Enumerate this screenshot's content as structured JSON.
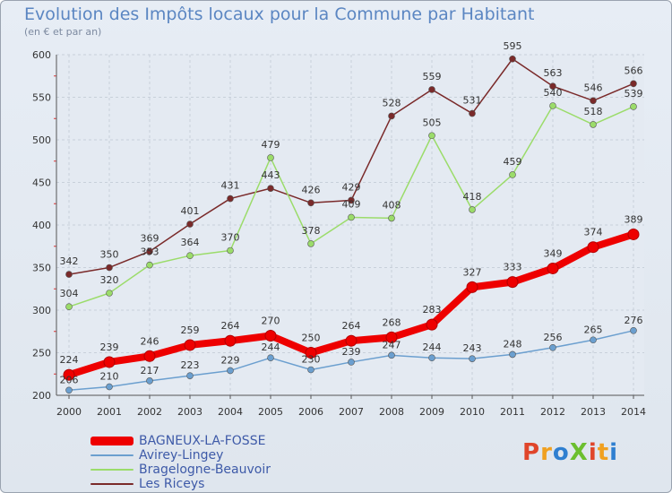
{
  "header": {
    "title": "Evolution des Impôts locaux pour la Commune par Habitant",
    "subtitle": "(en € et par an)"
  },
  "logo": {
    "text": "ProXiti",
    "colors": [
      "#e0452a",
      "#f0a020",
      "#2f7fd0",
      "#6cbf2f"
    ]
  },
  "chart_data": {
    "type": "line",
    "x": [
      2000,
      2001,
      2002,
      2003,
      2004,
      2005,
      2006,
      2007,
      2008,
      2009,
      2010,
      2011,
      2012,
      2013,
      2014
    ],
    "ylim": [
      200,
      600
    ],
    "yticks": [
      200,
      250,
      300,
      350,
      400,
      450,
      500,
      550,
      600
    ],
    "grid": true,
    "legend_position": "bottom-left",
    "series": [
      {
        "name": "BAGNEUX-LA-FOSSE",
        "color": "#ee0000",
        "values": [
          224,
          239,
          246,
          259,
          264,
          270,
          250,
          264,
          268,
          283,
          327,
          333,
          349,
          374,
          389
        ]
      },
      {
        "name": "Avirey-Lingey",
        "color": "#6b9fcf",
        "values": [
          206,
          210,
          217,
          223,
          229,
          244,
          230,
          239,
          247,
          244,
          243,
          248,
          256,
          265,
          276
        ]
      },
      {
        "name": "Bragelogne-Beauvoir",
        "color": "#9bdc6a",
        "values": [
          304,
          320,
          353,
          364,
          370,
          479,
          378,
          409,
          408,
          505,
          418,
          459,
          540,
          518,
          539
        ]
      },
      {
        "name": "Les Riceys",
        "color": "#7a2a2a",
        "values": [
          342,
          350,
          369,
          401,
          431,
          443,
          426,
          429,
          528,
          559,
          531,
          595,
          563,
          546,
          566
        ]
      }
    ]
  }
}
